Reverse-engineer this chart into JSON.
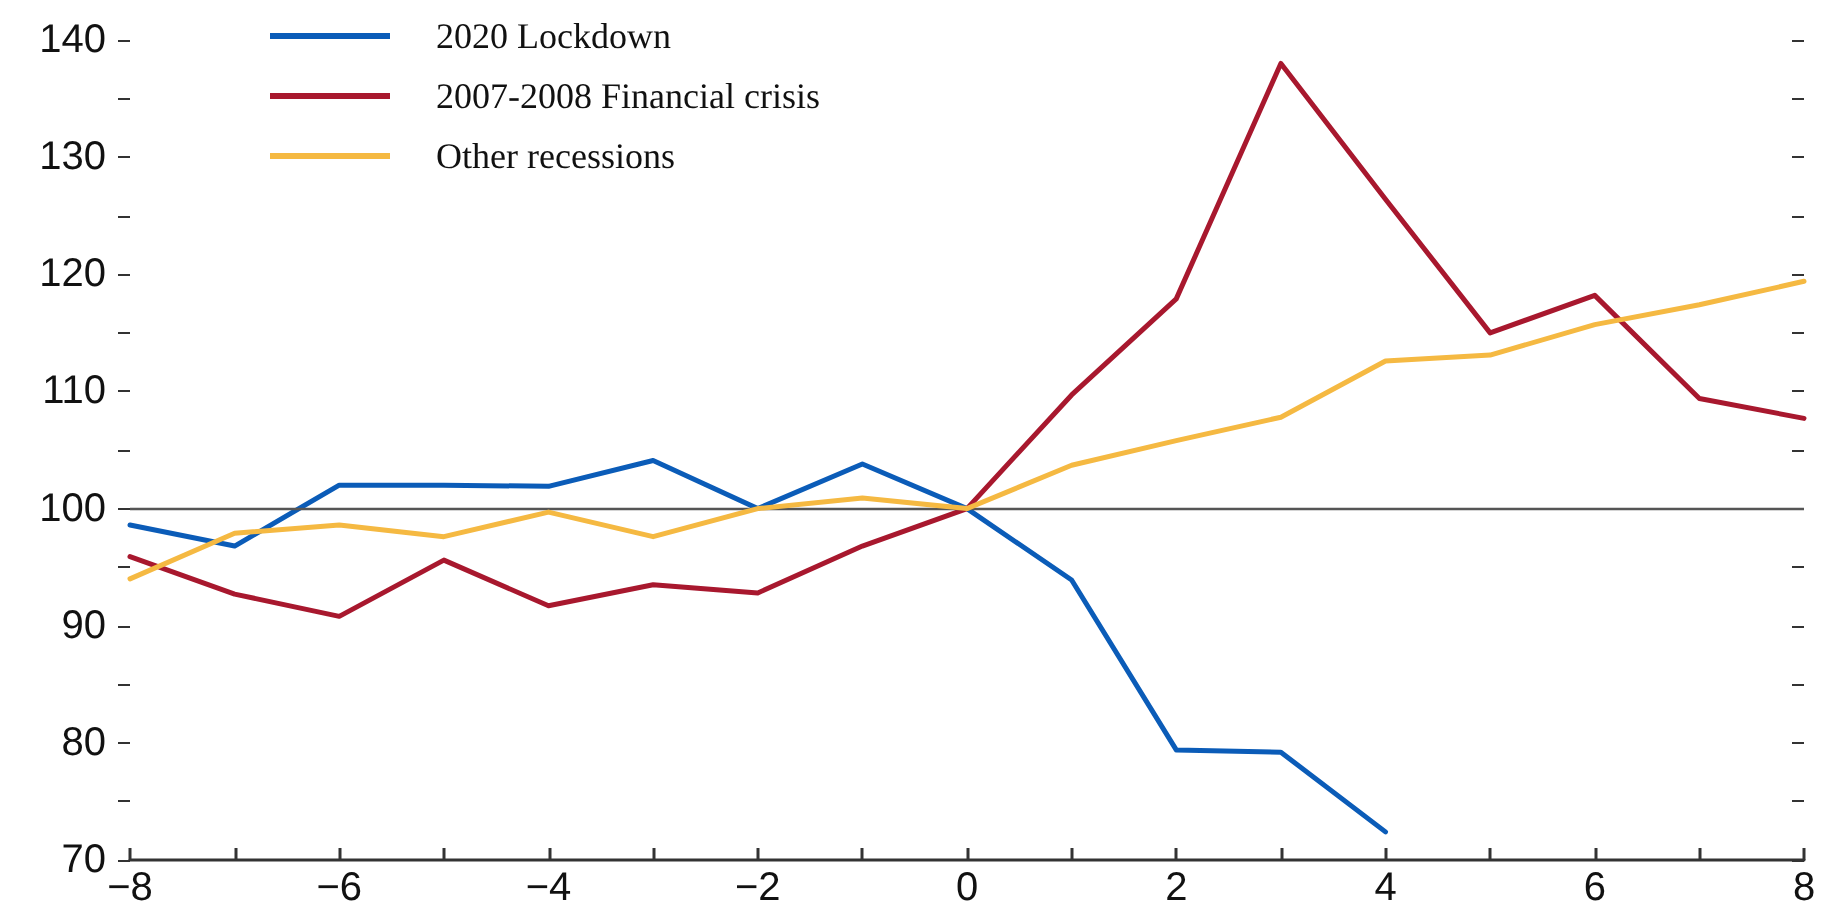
{
  "chart_data": {
    "type": "line",
    "x": [
      -8,
      -7,
      -6,
      -5,
      -4,
      -3,
      -2,
      -1,
      0,
      1,
      2,
      3,
      4,
      5,
      6,
      7,
      8
    ],
    "series": [
      {
        "name": "2020 Lockdown",
        "color": "#0b5cb8",
        "values": [
          98.6,
          96.8,
          102,
          102,
          101.9,
          104.1,
          100,
          103.8,
          100,
          93.9,
          79.4,
          79.2,
          72.4,
          null,
          null,
          null,
          null
        ]
      },
      {
        "name": "2007-2008 Financial crisis",
        "color": "#a8182e",
        "values": [
          95.9,
          92.7,
          90.8,
          95.6,
          91.7,
          93.5,
          92.8,
          96.8,
          100,
          109.7,
          117.9,
          138,
          126.4,
          115,
          118.2,
          109.4,
          107.7
        ]
      },
      {
        "name": "Other recessions",
        "color": "#f5b942",
        "values": [
          94,
          97.9,
          98.6,
          97.6,
          99.7,
          97.6,
          100,
          100.9,
          100,
          103.7,
          105.8,
          107.8,
          112.6,
          113.1,
          115.7,
          117.4,
          119.4
        ]
      }
    ],
    "xlim": [
      -8,
      8
    ],
    "xticks": [
      -8,
      {
        "value": -7,
        "label": null
      },
      -6,
      {
        "value": -5,
        "label": null
      },
      -4,
      {
        "value": -3,
        "label": null
      },
      -2,
      {
        "value": -1,
        "label": null
      },
      0,
      {
        "value": 1,
        "label": null
      },
      2,
      {
        "value": 3,
        "label": null
      },
      4,
      {
        "value": 5,
        "label": null
      },
      6,
      {
        "value": 7,
        "label": null
      },
      8
    ],
    "ylim": [
      70,
      140
    ],
    "yticks": [
      70,
      {
        "value": 75,
        "label": null
      },
      80,
      {
        "value": 85,
        "label": null
      },
      90,
      {
        "value": 95,
        "label": null
      },
      100,
      {
        "value": 105,
        "label": null
      },
      110,
      {
        "value": 115,
        "label": null
      },
      120,
      {
        "value": 125,
        "label": null
      },
      130,
      {
        "value": 135,
        "label": null
      },
      140
    ],
    "ref_lines": [
      {
        "axis": "y",
        "value": 100,
        "color": "#555555"
      }
    ],
    "grid": false,
    "legend": "top left",
    "marker": "none",
    "line_style": "solid"
  }
}
